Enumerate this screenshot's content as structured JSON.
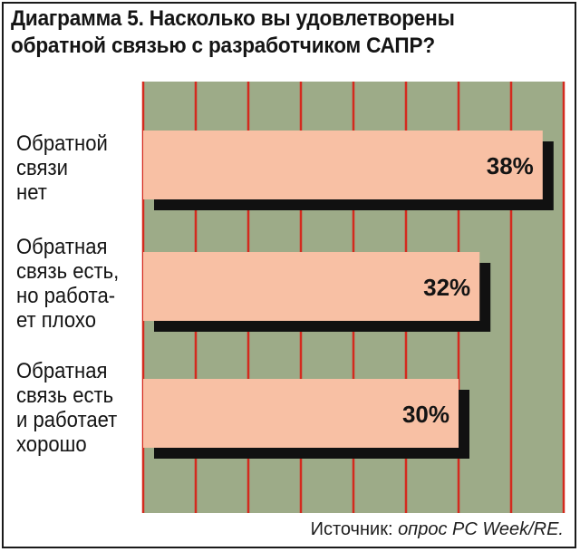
{
  "chart_data": {
    "type": "bar",
    "orientation": "horizontal",
    "title_line1": "Диаграмма 5. Насколько вы удовлетворены",
    "title_line2": "обратной связью с разработчиком САПР?",
    "categories": [
      [
        "Обратной",
        "связи",
        "нет"
      ],
      [
        "Обратная",
        "связь есть,",
        "но работа-",
        "ет плохо"
      ],
      [
        "Обратная",
        "связь есть",
        "и работает",
        "хорошо"
      ]
    ],
    "values": [
      38,
      32,
      30
    ],
    "value_labels": [
      "38%",
      "32%",
      "30%"
    ],
    "xlim": [
      0,
      40
    ],
    "grid": true
  },
  "source": {
    "prefix": "Источник: ",
    "text": "опрос PC Week/RE."
  },
  "colors": {
    "plot_bg": "#9dab88",
    "bar_fill": "#f8c0a4",
    "bar_shadow": "#111111",
    "gridline": "#d42a1e",
    "text": "#141414"
  }
}
